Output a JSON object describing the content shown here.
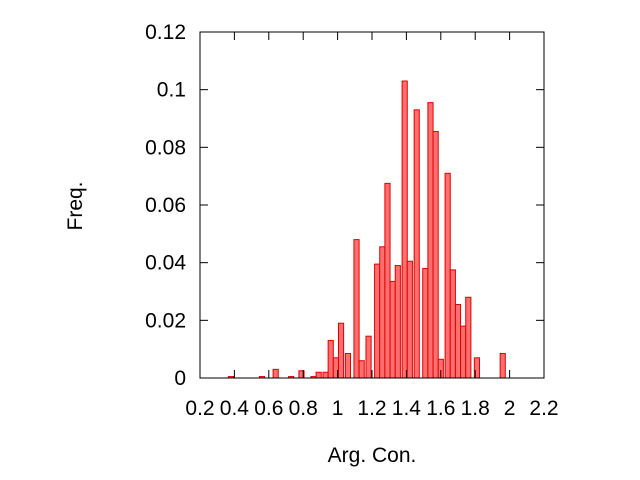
{
  "chart_data": {
    "type": "bar",
    "title": "",
    "xlabel": "Arg. Con.",
    "ylabel": "Freq.",
    "xlim": [
      0.2,
      2.2
    ],
    "ylim": [
      0,
      0.12
    ],
    "grid": false,
    "xticks": [
      "0.2",
      "0.4",
      "0.6",
      "0.8",
      "1",
      "1.2",
      "1.4",
      "1.6",
      "1.8",
      "2",
      "2.2"
    ],
    "yticks": [
      "0",
      "0.02",
      "0.04",
      "0.06",
      "0.08",
      "0.1",
      "0.12"
    ],
    "bin_width": 0.03,
    "x": [
      0.38,
      0.56,
      0.64,
      0.73,
      0.79,
      0.86,
      0.89,
      0.93,
      0.96,
      0.99,
      1.02,
      1.06,
      1.11,
      1.14,
      1.18,
      1.23,
      1.26,
      1.29,
      1.32,
      1.35,
      1.39,
      1.42,
      1.46,
      1.51,
      1.54,
      1.57,
      1.6,
      1.64,
      1.67,
      1.7,
      1.73,
      1.76,
      1.81,
      1.96
    ],
    "values": [
      0.0005,
      0.0005,
      0.003,
      0.0005,
      0.0025,
      0.0005,
      0.002,
      0.002,
      0.013,
      0.007,
      0.019,
      0.0085,
      0.048,
      0.006,
      0.0145,
      0.0395,
      0.0455,
      0.0675,
      0.0335,
      0.039,
      0.103,
      0.0405,
      0.093,
      0.038,
      0.0955,
      0.0855,
      0.0065,
      0.071,
      0.0375,
      0.0255,
      0.018,
      0.028,
      0.007,
      0.0085
    ]
  }
}
